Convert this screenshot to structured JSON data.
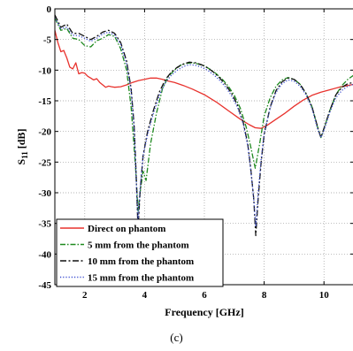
{
  "chart_data": {
    "type": "line",
    "xlabel": "Frequency [GHz]",
    "ylabel": "S",
    "ylabel_subscript": "11",
    "ylabel_unit": " [dB]",
    "xlim": [
      1,
      11
    ],
    "ylim": [
      -45,
      0
    ],
    "xticks": [
      2,
      4,
      6,
      8,
      10
    ],
    "yticks": [
      0,
      -5,
      -10,
      -15,
      -20,
      -25,
      -30,
      -35,
      -40,
      -45
    ],
    "grid": true,
    "legend_position": "bottom-left",
    "series": [
      {
        "name": "Direct on phantom",
        "color": "#e8322d",
        "dash": "",
        "x": [
          1.0,
          1.1,
          1.2,
          1.3,
          1.4,
          1.5,
          1.6,
          1.7,
          1.8,
          1.9,
          2.0,
          2.1,
          2.2,
          2.3,
          2.4,
          2.5,
          2.6,
          2.7,
          2.8,
          2.9,
          3.0,
          3.2,
          3.4,
          3.6,
          3.8,
          4.0,
          4.2,
          4.4,
          4.6,
          4.8,
          5.0,
          5.3,
          5.6,
          6.0,
          6.4,
          6.8,
          7.2,
          7.5,
          7.7,
          7.9,
          8.1,
          8.4,
          8.7,
          9.0,
          9.3,
          9.6,
          9.9,
          10.2,
          10.5,
          10.8,
          11.0
        ],
        "y": [
          -3.5,
          -5.5,
          -7.0,
          -6.8,
          -8.0,
          -9.5,
          -9.8,
          -8.8,
          -10.6,
          -10.4,
          -10.5,
          -11.0,
          -11.3,
          -11.6,
          -11.4,
          -12.0,
          -12.4,
          -12.8,
          -12.6,
          -12.7,
          -12.8,
          -12.7,
          -12.4,
          -12.0,
          -11.7,
          -11.5,
          -11.3,
          -11.3,
          -11.5,
          -11.8,
          -12.0,
          -12.5,
          -13.1,
          -14.0,
          -15.2,
          -16.6,
          -18.0,
          -18.9,
          -19.4,
          -19.5,
          -19.0,
          -18.0,
          -17.0,
          -15.9,
          -14.9,
          -14.1,
          -13.6,
          -13.2,
          -12.8,
          -12.5,
          -12.3
        ]
      },
      {
        "name": "5 mm from the phantom",
        "color": "#1f8a1f",
        "dash": "6,2,1.5,2",
        "x": [
          1.0,
          1.2,
          1.4,
          1.6,
          1.8,
          2.0,
          2.2,
          2.4,
          2.6,
          2.8,
          3.0,
          3.2,
          3.4,
          3.55,
          3.7,
          3.78,
          3.85,
          3.95,
          4.05,
          4.2,
          4.4,
          4.6,
          4.8,
          5.0,
          5.2,
          5.4,
          5.6,
          5.8,
          6.0,
          6.2,
          6.4,
          6.6,
          6.8,
          7.0,
          7.2,
          7.4,
          7.55,
          7.7,
          7.85,
          8.0,
          8.2,
          8.4,
          8.6,
          8.8,
          9.0,
          9.2,
          9.4,
          9.6,
          9.8,
          9.9,
          10.0,
          10.2,
          10.4,
          10.6,
          10.8,
          11.0
        ],
        "y": [
          -1.5,
          -3.5,
          -3.2,
          -4.8,
          -5.0,
          -6.0,
          -6.2,
          -5.2,
          -4.8,
          -4.2,
          -4.5,
          -6.5,
          -10.0,
          -16.0,
          -26.0,
          -33.0,
          -30.0,
          -26.5,
          -28.0,
          -22.0,
          -17.0,
          -13.0,
          -11.0,
          -10.0,
          -9.2,
          -8.9,
          -8.8,
          -9.0,
          -9.3,
          -9.9,
          -10.6,
          -11.5,
          -12.6,
          -14.1,
          -16.2,
          -19.3,
          -22.5,
          -26.0,
          -22.0,
          -17.5,
          -14.5,
          -12.6,
          -11.6,
          -11.2,
          -11.5,
          -12.3,
          -13.8,
          -16.0,
          -19.5,
          -21.0,
          -19.5,
          -16.5,
          -14.0,
          -12.5,
          -11.5,
          -10.8
        ]
      },
      {
        "name": "10 mm from the phantom",
        "color": "#111111",
        "dash": "7,2.5,2,2.5",
        "x": [
          1.0,
          1.2,
          1.4,
          1.6,
          1.8,
          2.0,
          2.2,
          2.4,
          2.6,
          2.8,
          3.0,
          3.2,
          3.4,
          3.55,
          3.65,
          3.72,
          3.78,
          3.85,
          3.95,
          4.1,
          4.3,
          4.5,
          4.7,
          4.9,
          5.1,
          5.3,
          5.5,
          5.7,
          5.9,
          6.1,
          6.3,
          6.5,
          6.7,
          6.9,
          7.1,
          7.3,
          7.45,
          7.55,
          7.65,
          7.72,
          7.8,
          7.9,
          8.0,
          8.2,
          8.4,
          8.6,
          8.8,
          9.0,
          9.2,
          9.4,
          9.6,
          9.8,
          9.9,
          10.0,
          10.2,
          10.4,
          10.6,
          10.8,
          11.0
        ],
        "y": [
          -1.0,
          -3.0,
          -2.5,
          -4.0,
          -4.0,
          -4.5,
          -5.0,
          -4.5,
          -3.8,
          -3.5,
          -4.0,
          -5.5,
          -8.5,
          -13.0,
          -19.0,
          -27.0,
          -36.0,
          -30.0,
          -24.0,
          -20.0,
          -16.5,
          -13.5,
          -11.5,
          -10.3,
          -9.5,
          -9.0,
          -8.7,
          -8.8,
          -9.1,
          -9.6,
          -10.3,
          -11.2,
          -12.3,
          -13.7,
          -15.6,
          -18.5,
          -22.0,
          -26.0,
          -31.0,
          -37.0,
          -31.0,
          -25.0,
          -20.5,
          -16.0,
          -13.3,
          -11.9,
          -11.3,
          -11.5,
          -12.3,
          -13.8,
          -16.0,
          -19.5,
          -21.0,
          -19.5,
          -16.5,
          -14.0,
          -12.8,
          -12.2,
          -12.0
        ]
      },
      {
        "name": "15 mm from the phantom",
        "color": "#3d4fd0",
        "dash": "1.2,2",
        "x": [
          1.0,
          1.2,
          1.4,
          1.6,
          1.8,
          2.0,
          2.2,
          2.4,
          2.6,
          2.8,
          3.0,
          3.2,
          3.4,
          3.55,
          3.65,
          3.72,
          3.78,
          3.85,
          3.95,
          4.1,
          4.3,
          4.5,
          4.7,
          4.9,
          5.1,
          5.3,
          5.5,
          5.7,
          5.9,
          6.1,
          6.3,
          6.5,
          6.7,
          6.9,
          7.1,
          7.3,
          7.45,
          7.55,
          7.65,
          7.72,
          7.8,
          7.9,
          8.0,
          8.2,
          8.4,
          8.6,
          8.8,
          9.0,
          9.2,
          9.4,
          9.6,
          9.8,
          9.9,
          10.0,
          10.2,
          10.4,
          10.6,
          10.8,
          11.0
        ],
        "y": [
          -1.5,
          -3.2,
          -3.0,
          -4.3,
          -4.4,
          -4.8,
          -5.3,
          -4.8,
          -4.1,
          -3.8,
          -4.3,
          -5.8,
          -9.0,
          -13.5,
          -19.5,
          -27.5,
          -35.0,
          -29.5,
          -24.0,
          -20.5,
          -17.0,
          -14.0,
          -12.0,
          -10.8,
          -10.0,
          -9.4,
          -9.1,
          -9.2,
          -9.5,
          -10.0,
          -10.7,
          -11.6,
          -12.7,
          -14.1,
          -16.0,
          -18.8,
          -22.3,
          -26.3,
          -31.0,
          -35.5,
          -30.0,
          -24.5,
          -20.3,
          -16.2,
          -13.6,
          -12.2,
          -11.6,
          -11.8,
          -12.6,
          -14.0,
          -16.3,
          -19.8,
          -21.0,
          -19.8,
          -16.8,
          -14.5,
          -13.3,
          -12.6,
          -12.3
        ]
      }
    ]
  },
  "caption": "(c)"
}
